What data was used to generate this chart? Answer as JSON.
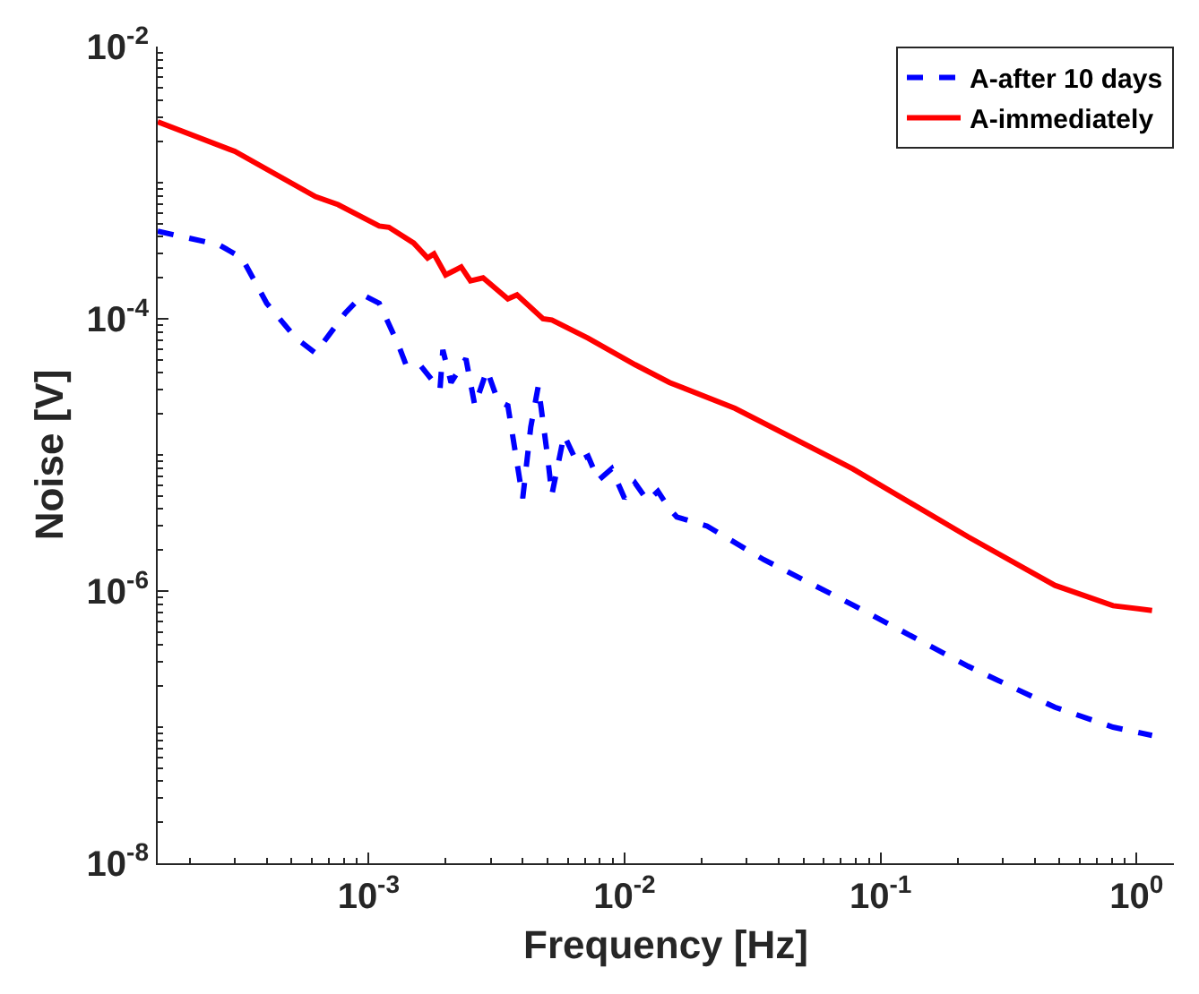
{
  "chart_data": {
    "type": "line",
    "xlabel": "Frequency [Hz]",
    "ylabel": "Noise [V]",
    "log": "xy",
    "legend": "top right",
    "xlim": [
      0.00015,
      1.4
    ],
    "ylim": [
      1e-08,
      0.01
    ],
    "xticks": [
      {
        "value": 0.001,
        "label": "10$^{-3}$"
      },
      {
        "value": 0.01,
        "label": "10$^{-2}$"
      },
      {
        "value": 0.1,
        "label": "10$^{-1}$"
      },
      {
        "value": 1,
        "label": "10$^{0}$"
      }
    ],
    "yticks": [
      {
        "value": 1e-08,
        "label": "10$^{-8}$"
      },
      {
        "value": 1e-06,
        "label": "10$^{-6}$"
      },
      {
        "value": 0.0001,
        "label": "10$^{-4}$"
      },
      {
        "value": 0.01,
        "label": "10$^{-2}$"
      }
    ],
    "series": [
      {
        "name": "A-after 10 days",
        "color": "#0000ff",
        "line_style": "dashed",
        "x": [
          0.00015,
          0.00026,
          0.00032,
          0.0004,
          0.00052,
          0.00062,
          0.00081,
          0.00095,
          0.0011,
          0.0013,
          0.0014,
          0.0016,
          0.0019,
          0.00195,
          0.0021,
          0.0024,
          0.0026,
          0.0029,
          0.0032,
          0.0035,
          0.004,
          0.0043,
          0.0046,
          0.005,
          0.0052,
          0.0058,
          0.0065,
          0.0072,
          0.0079,
          0.0089,
          0.01,
          0.011,
          0.0123,
          0.0135,
          0.015,
          0.016,
          0.021,
          0.035,
          0.078,
          0.22,
          0.48,
          0.81,
          1.15
        ],
        "values": [
          0.00044,
          0.00035,
          0.00028,
          0.00013,
          7.2e-05,
          5.6e-05,
          0.00011,
          0.00015,
          0.00013,
          6.6e-05,
          4.6e-05,
          4.5e-05,
          3e-05,
          5.9e-05,
          3.4e-05,
          5.1e-05,
          2.3e-05,
          4.2e-05,
          2.5e-05,
          2.3e-05,
          4.8e-06,
          1.6e-05,
          3.2e-05,
          9.8e-06,
          5.1e-06,
          1.4e-05,
          8.9e-06,
          9.8e-06,
          6.5e-06,
          7.9e-06,
          4.8e-06,
          6.2e-06,
          4.6e-06,
          5.4e-06,
          4e-06,
          3.5e-06,
          3e-06,
          1.7e-06,
          7.9e-07,
          2.8e-07,
          1.4e-07,
          1e-07,
          8.7e-08
        ]
      },
      {
        "name": "A-immediately",
        "color": "#ff0000",
        "line_style": "solid",
        "x": [
          0.00015,
          0.0003,
          0.00062,
          0.00076,
          0.0011,
          0.0012,
          0.0015,
          0.0017,
          0.0018,
          0.002,
          0.0023,
          0.0025,
          0.0028,
          0.0035,
          0.0038,
          0.0048,
          0.0052,
          0.0072,
          0.011,
          0.015,
          0.027,
          0.078,
          0.22,
          0.48,
          0.81,
          1.15
        ],
        "values": [
          0.0028,
          0.0017,
          0.00079,
          0.00069,
          0.00048,
          0.00047,
          0.00036,
          0.00028,
          0.0003,
          0.00021,
          0.00024,
          0.00019,
          0.0002,
          0.00014,
          0.00015,
          0.0001,
          9.8e-05,
          7.2e-05,
          4.6e-05,
          3.4e-05,
          2.2e-05,
          7.9e-06,
          2.5e-06,
          1.1e-06,
          7.8e-07,
          7.2e-07
        ]
      }
    ]
  }
}
